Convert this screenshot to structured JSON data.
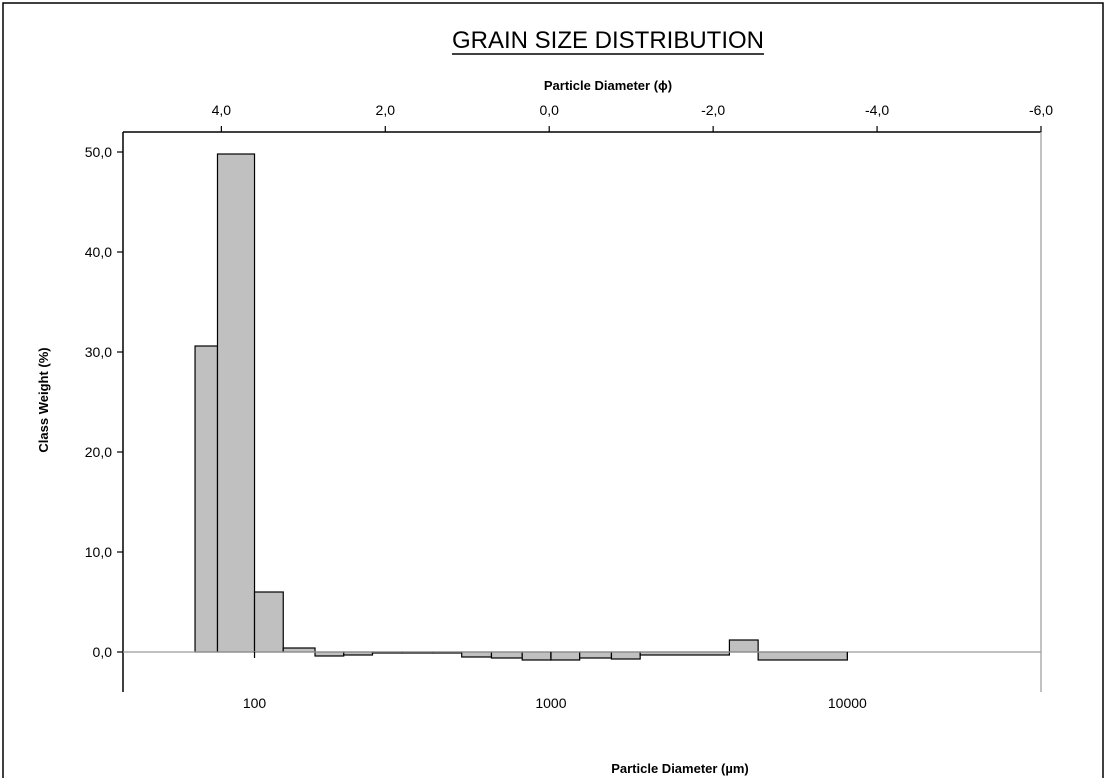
{
  "chart_data": {
    "type": "bar",
    "title": "GRAIN SIZE DISTRIBUTION",
    "x_bottom": {
      "label": "Particle Diameter (µm)",
      "scale": "log",
      "range": [
        36,
        45000
      ],
      "ticks": [
        "100",
        "1000",
        "10000"
      ],
      "tick_values": [
        100,
        1000,
        10000
      ]
    },
    "x_top": {
      "label": "Particle Diameter (ϕ)",
      "range": [
        5.2,
        -6.0
      ],
      "ticks": [
        "4,0",
        "2,0",
        "0,0",
        "-2,0",
        "-4,0",
        "-6,0"
      ],
      "tick_values": [
        4,
        2,
        0,
        -2,
        -4,
        -6
      ]
    },
    "y": {
      "label": "Class Weight (%)",
      "range": [
        -4,
        52
      ],
      "ticks": [
        "0,0",
        "10,0",
        "20,0",
        "30,0",
        "40,0",
        "50,0"
      ],
      "tick_values": [
        0,
        10,
        20,
        30,
        40,
        50
      ]
    },
    "grid": false,
    "legend": "none",
    "bar_fill": "#c0c0c0",
    "bars": [
      {
        "from": 63,
        "to": 75,
        "value": 30.6
      },
      {
        "from": 75,
        "to": 100,
        "value": 49.8
      },
      {
        "from": 100,
        "to": 125,
        "value": 6.0
      },
      {
        "from": 125,
        "to": 160,
        "value": 0.4
      },
      {
        "from": 160,
        "to": 200,
        "value": -0.4
      },
      {
        "from": 200,
        "to": 250,
        "value": -0.3
      },
      {
        "from": 250,
        "to": 315,
        "value": -0.1
      },
      {
        "from": 315,
        "to": 400,
        "value": -0.1
      },
      {
        "from": 400,
        "to": 500,
        "value": -0.1
      },
      {
        "from": 500,
        "to": 630,
        "value": -0.5
      },
      {
        "from": 630,
        "to": 800,
        "value": -0.6
      },
      {
        "from": 800,
        "to": 1000,
        "value": -0.8
      },
      {
        "from": 1000,
        "to": 1250,
        "value": -0.8
      },
      {
        "from": 1250,
        "to": 1600,
        "value": -0.6
      },
      {
        "from": 1600,
        "to": 2000,
        "value": -0.7
      },
      {
        "from": 2000,
        "to": 4000,
        "value": -0.3
      },
      {
        "from": 4000,
        "to": 5000,
        "value": 1.2
      },
      {
        "from": 5000,
        "to": 10000,
        "value": -0.8
      }
    ]
  }
}
